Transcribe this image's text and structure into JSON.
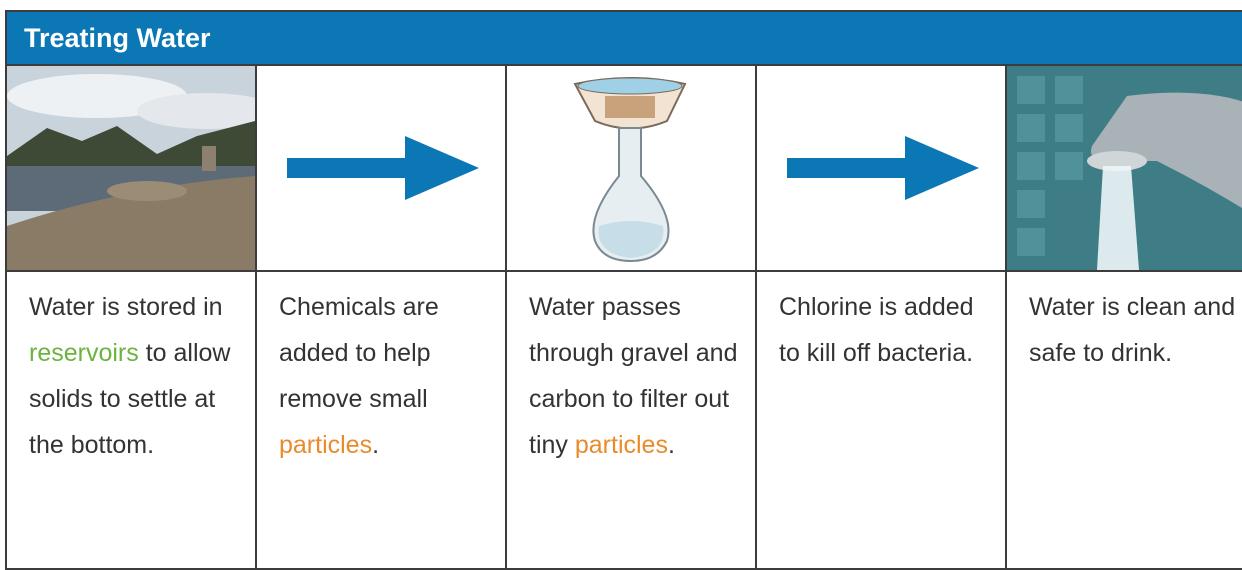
{
  "title": "Treating Water",
  "cells": [
    {
      "segments": [
        {
          "text": "Water is stored in "
        },
        {
          "text": "reservoirs",
          "color": "#6cb33f"
        },
        {
          "text": " to allow solids to settle at the bottom."
        }
      ]
    },
    {
      "segments": [
        {
          "text": "Chemicals are added to help remove small "
        },
        {
          "text": "particles",
          "color": "#e98b2a"
        },
        {
          "text": "."
        }
      ]
    },
    {
      "segments": [
        {
          "text": "Water passes through gravel and carbon to filter out tiny "
        },
        {
          "text": "particles",
          "color": "#e98b2a"
        },
        {
          "text": "."
        }
      ]
    },
    {
      "segments": [
        {
          "text": "Chlorine is added to kill off bacteria."
        }
      ]
    },
    {
      "segments": [
        {
          "text": "Water is clean and safe to drink."
        }
      ]
    }
  ]
}
